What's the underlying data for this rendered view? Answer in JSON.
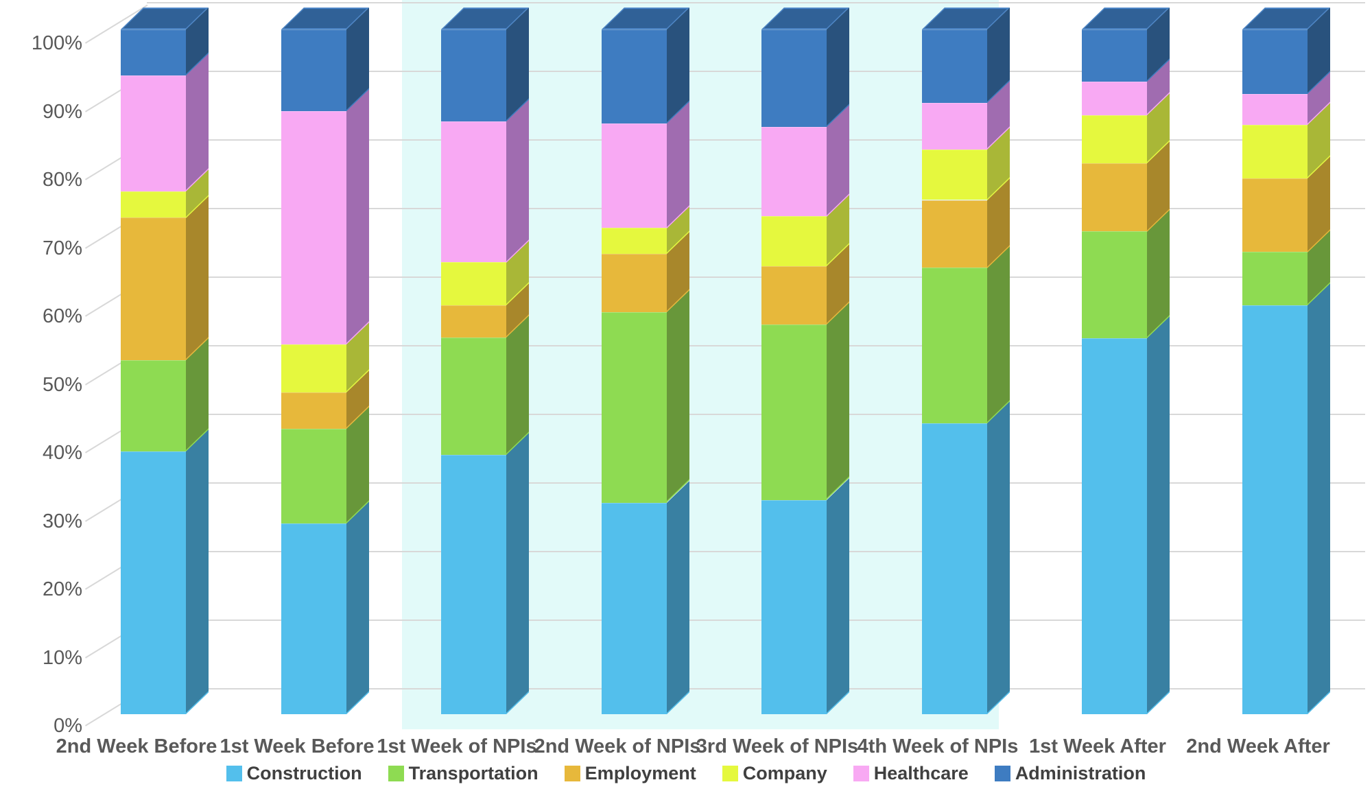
{
  "chart_data": {
    "type": "bar",
    "subtype": "3d-100-percent-stacked-column",
    "title": "",
    "xlabel": "",
    "ylabel": "",
    "categories": [
      "2nd Week Before",
      "1st Week Before",
      "1st Week of NPIs",
      "2nd Week of NPIs",
      "3rd Week of NPIs",
      "4th Week of NPIs",
      "1st Week After",
      "2nd Week After"
    ],
    "series": [
      {
        "name": "Construction",
        "color": "#53BFEC",
        "side_color": "#3980A2",
        "values": [
          38.4,
          27.9,
          37.9,
          30.9,
          31.3,
          42.5,
          54.9,
          59.7
        ]
      },
      {
        "name": "Transportation",
        "color": "#8EDB52",
        "side_color": "#68973A",
        "values": [
          13.3,
          13.8,
          17.1,
          27.8,
          25.6,
          22.7,
          15.6,
          7.8
        ]
      },
      {
        "name": "Employment",
        "color": "#E7B83B",
        "side_color": "#A8872B",
        "values": [
          20.8,
          5.3,
          4.7,
          8.5,
          8.5,
          9.9,
          10.0,
          10.8
        ]
      },
      {
        "name": "Company",
        "color": "#E5F83E",
        "side_color": "#A9B737",
        "values": [
          3.9,
          7.0,
          6.3,
          3.8,
          7.3,
          7.4,
          7.0,
          7.8
        ]
      },
      {
        "name": "Healthcare",
        "color": "#F8A9F3",
        "side_color": "#A06CB0",
        "values": [
          16.9,
          34.1,
          20.6,
          15.3,
          13.1,
          6.8,
          4.9,
          4.5
        ]
      },
      {
        "name": "Administration",
        "color": "#3E7CC1",
        "side_color": "#29527D",
        "top_color": "#306197",
        "top_border": "#4C85C6",
        "values": [
          6.7,
          11.9,
          13.4,
          13.7,
          14.2,
          10.7,
          7.6,
          9.4
        ]
      }
    ],
    "y_axis": {
      "min": 0,
      "max": 100,
      "unit": "%",
      "ticks": [
        "0%",
        "10%",
        "20%",
        "30%",
        "40%",
        "50%",
        "60%",
        "70%",
        "80%",
        "90%",
        "100%"
      ]
    },
    "gridlines": true,
    "legend_position": "bottom",
    "highlight_band": {
      "covers": [
        "1st Week of NPIs",
        "2nd Week of NPIs",
        "3rd Week of NPIs",
        "4th Week of NPIs"
      ],
      "color": "#E2FAF9"
    },
    "axis_text_color": "#595959",
    "gridline_color": "#D8D8D8",
    "background_color": "#FFFFFF"
  }
}
